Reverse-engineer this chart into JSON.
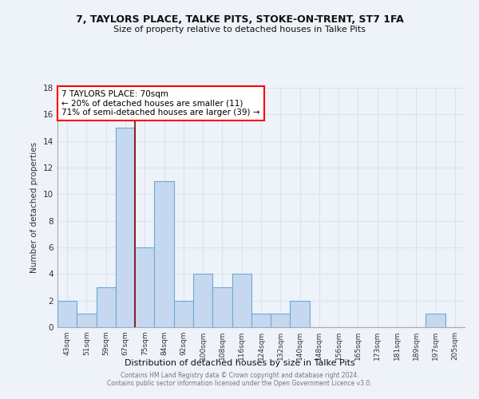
{
  "title_line1": "7, TAYLORS PLACE, TALKE PITS, STOKE-ON-TRENT, ST7 1FA",
  "title_line2": "Size of property relative to detached houses in Talke Pits",
  "xlabel": "Distribution of detached houses by size in Talke Pits",
  "ylabel": "Number of detached properties",
  "bar_labels": [
    "43sqm",
    "51sqm",
    "59sqm",
    "67sqm",
    "75sqm",
    "84sqm",
    "92sqm",
    "100sqm",
    "108sqm",
    "116sqm",
    "124sqm",
    "132sqm",
    "140sqm",
    "148sqm",
    "156sqm",
    "165sqm",
    "173sqm",
    "181sqm",
    "189sqm",
    "197sqm",
    "205sqm"
  ],
  "bar_values": [
    2,
    1,
    3,
    15,
    6,
    11,
    2,
    4,
    3,
    4,
    1,
    1,
    2,
    0,
    0,
    0,
    0,
    0,
    0,
    1,
    0
  ],
  "bar_color": "#c5d8f0",
  "bar_edge_color": "#6aaad4",
  "annotation_line1": "7 TAYLORS PLACE: 70sqm",
  "annotation_line2": "← 20% of detached houses are smaller (11)",
  "annotation_line3": "71% of semi-detached houses are larger (39) →",
  "red_line_x": 3.5,
  "ylim": [
    0,
    18
  ],
  "yticks": [
    0,
    2,
    4,
    6,
    8,
    10,
    12,
    14,
    16,
    18
  ],
  "bg_color": "#eef2f9",
  "grid_color": "#d8e4f0",
  "footer_line1": "Contains HM Land Registry data © Crown copyright and database right 2024.",
  "footer_line2": "Contains public sector information licensed under the Open Government Licence v3.0."
}
